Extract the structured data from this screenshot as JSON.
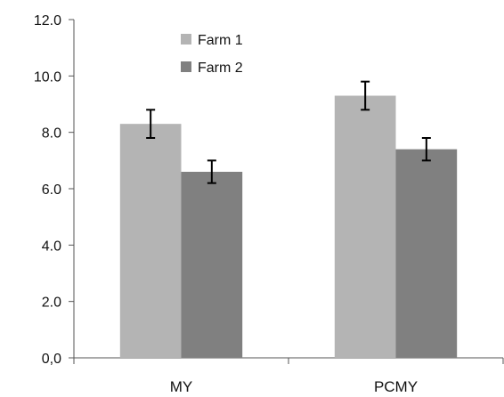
{
  "chart_data": {
    "type": "bar",
    "categories": [
      "MY",
      "PCMY"
    ],
    "series": [
      {
        "name": "Farm 1",
        "values": [
          8.3,
          9.3
        ],
        "errors": [
          0.5,
          0.5
        ],
        "color": "#b4b4b4"
      },
      {
        "name": "Farm 2",
        "values": [
          6.6,
          7.4
        ],
        "errors": [
          0.4,
          0.4
        ],
        "color": "#808080"
      }
    ],
    "yticks": [
      "0,0",
      "2.0",
      "4.0",
      "6.0",
      "8.0",
      "10.0",
      "12.0"
    ],
    "ylim": [
      0,
      12
    ],
    "grid": false,
    "legend": "top-left"
  }
}
